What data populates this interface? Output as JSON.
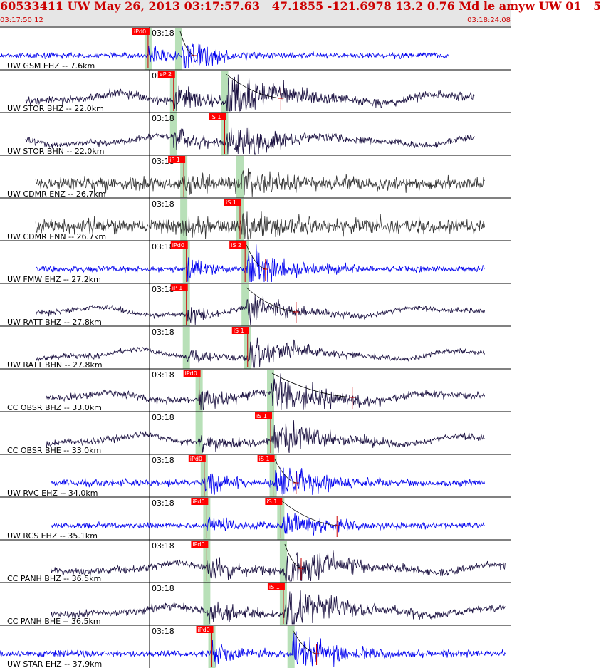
{
  "header": {
    "title": "60533411 UW May 26, 2013 03:17:57.63   47.1855 -121.6978 13.2 0.76 Md le amyw UW 01   5",
    "start_time": "03:17:50.12",
    "end_time": "03:18:24.08"
  },
  "colors": {
    "header_bg": "#e6e6e6",
    "header_text": "#cc0000",
    "trace_blue": "#0000ee",
    "trace_dark": "#1a1040",
    "trace_gray": "#333333",
    "pick_box": "#ff0000",
    "pick_line": "#cc0000",
    "phase_window": "#b8e0b8"
  },
  "chart_data": {
    "type": "line",
    "time_range": [
      "03:17:50.12",
      "03:18:24.08"
    ],
    "minute_mark": "03:18",
    "traces": [
      {
        "label": "UW GSM EHZ -- 7.6km",
        "color": "#0000ee",
        "start_frac": 0.0,
        "end_frac": 0.88,
        "p_pick": "iPd0",
        "p_frac": 0.29,
        "s_pick": "",
        "s_frac": 0.35,
        "amp_frac": 0.045,
        "coda_frac": 0.38
      },
      {
        "label": "UW STOR BHZ -- 22.0km",
        "color": "#1a1040",
        "start_frac": 0.05,
        "end_frac": 0.93,
        "p_pick": "eP 2",
        "p_frac": 0.34,
        "s_pick": "",
        "s_frac": 0.44,
        "amp_frac": 0.08,
        "coda_frac": 0.55
      },
      {
        "label": "UW STOR BHN -- 22.0km",
        "color": "#1a1040",
        "start_frac": 0.05,
        "end_frac": 0.93,
        "p_pick": "",
        "p_frac": 0.34,
        "s_pick": "iS 1",
        "s_frac": 0.44,
        "amp_frac": 0.06,
        "coda_frac": 0.0
      },
      {
        "label": "UW CDMR ENZ -- 26.7km",
        "color": "#333333",
        "start_frac": 0.07,
        "end_frac": 0.95,
        "p_pick": "iP 1",
        "p_frac": 0.36,
        "s_pick": "",
        "s_frac": 0.47,
        "amp_frac": 0.045,
        "coda_frac": 0.0
      },
      {
        "label": "UW CDMR ENN -- 26.7km",
        "color": "#333333",
        "start_frac": 0.07,
        "end_frac": 0.95,
        "p_pick": "",
        "p_frac": 0.36,
        "s_pick": "iS 1",
        "s_frac": 0.47,
        "amp_frac": 0.05,
        "coda_frac": 0.0
      },
      {
        "label": "UW FMW EHZ -- 27.2km",
        "color": "#0000ee",
        "start_frac": 0.07,
        "end_frac": 0.95,
        "p_pick": "iPd0",
        "p_frac": 0.365,
        "s_pick": "iS 2",
        "s_frac": 0.48,
        "amp_frac": 0.055,
        "coda_frac": 0.52
      },
      {
        "label": "UW RATT BHZ -- 27.8km",
        "color": "#1a1040",
        "start_frac": 0.07,
        "end_frac": 0.95,
        "p_pick": "iP 1",
        "p_frac": 0.365,
        "s_pick": "",
        "s_frac": 0.48,
        "amp_frac": 0.045,
        "coda_frac": 0.58
      },
      {
        "label": "UW RATT BHN -- 27.8km",
        "color": "#1a1040",
        "start_frac": 0.07,
        "end_frac": 0.95,
        "p_pick": "",
        "p_frac": 0.365,
        "s_pick": "iS 1",
        "s_frac": 0.485,
        "amp_frac": 0.045,
        "coda_frac": 0.0
      },
      {
        "label": "CC OBSR BHZ -- 33.0km",
        "color": "#1a1040",
        "start_frac": 0.09,
        "end_frac": 0.95,
        "p_pick": "iPd0",
        "p_frac": 0.39,
        "s_pick": "",
        "s_frac": 0.53,
        "amp_frac": 0.065,
        "coda_frac": 0.69
      },
      {
        "label": "CC OBSR BHE -- 33.0km",
        "color": "#1a1040",
        "start_frac": 0.09,
        "end_frac": 0.95,
        "p_pick": "",
        "p_frac": 0.39,
        "s_pick": "iS 1",
        "s_frac": 0.53,
        "amp_frac": 0.06,
        "coda_frac": 0.0
      },
      {
        "label": "UW RVC EHZ -- 34.0km",
        "color": "#0000ee",
        "start_frac": 0.1,
        "end_frac": 0.95,
        "p_pick": "iPd0",
        "p_frac": 0.4,
        "s_pick": "iS 1",
        "s_frac": 0.535,
        "amp_frac": 0.06,
        "coda_frac": 0.58
      },
      {
        "label": "UW RCS EHZ -- 35.1km",
        "color": "#0000ee",
        "start_frac": 0.1,
        "end_frac": 0.95,
        "p_pick": "iPd0",
        "p_frac": 0.405,
        "s_pick": "iS 1",
        "s_frac": 0.55,
        "amp_frac": 0.05,
        "coda_frac": 0.66
      },
      {
        "label": "CC PANH BHZ -- 36.5km",
        "color": "#1a1040",
        "start_frac": 0.1,
        "end_frac": 0.99,
        "p_pick": "iPd0",
        "p_frac": 0.405,
        "s_pick": "",
        "s_frac": 0.555,
        "amp_frac": 0.07,
        "coda_frac": 0.59
      },
      {
        "label": "CC PANH BHE -- 36.5km",
        "color": "#1a1040",
        "start_frac": 0.1,
        "end_frac": 0.99,
        "p_pick": "",
        "p_frac": 0.405,
        "s_pick": "iS 1",
        "s_frac": 0.555,
        "amp_frac": 0.07,
        "coda_frac": 0.0
      },
      {
        "label": "UW STAR EHZ -- 37.9km",
        "color": "#0000ee",
        "start_frac": 0.0,
        "end_frac": 0.99,
        "p_pick": "iPd0",
        "p_frac": 0.415,
        "s_pick": "",
        "s_frac": 0.57,
        "amp_frac": 0.06,
        "coda_frac": 0.62
      }
    ]
  }
}
